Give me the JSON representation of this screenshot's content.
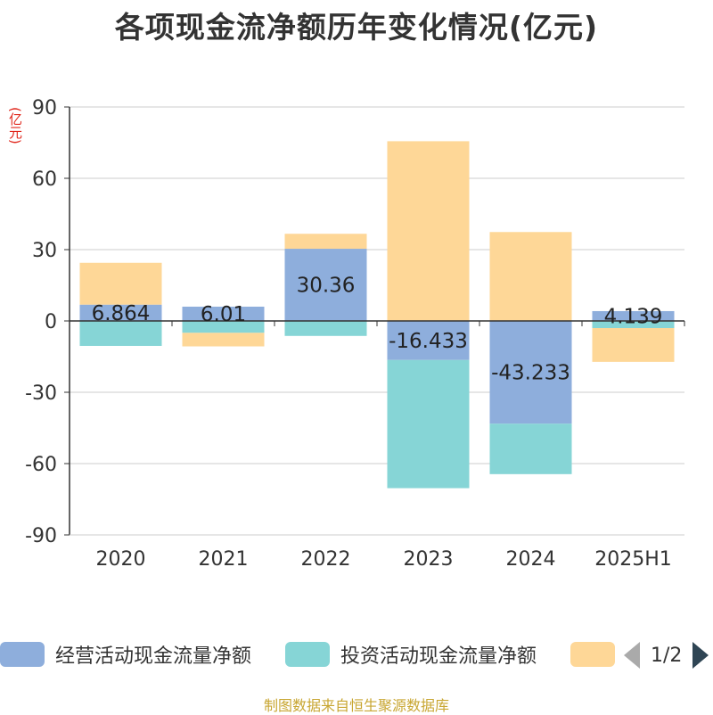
{
  "chart_data": {
    "type": "bar",
    "stacked": true,
    "title": "各项现金流净额历年变化情况(亿元)",
    "ylabel": "(亿元)",
    "ylim": [
      -90,
      90
    ],
    "yticks": [
      90,
      60,
      30,
      0,
      -30,
      -60,
      -90
    ],
    "grid": true,
    "categories": [
      "2020",
      "2021",
      "2022",
      "2023",
      "2024",
      "2025H1"
    ],
    "series": [
      {
        "name": "经营活动现金流量净额",
        "color": "#8eaedc",
        "values": [
          6.864,
          6.01,
          30.36,
          -16.433,
          -43.233,
          4.139
        ],
        "labels": [
          "6.864",
          "6.01",
          "30.36",
          "-16.433",
          "-43.233",
          "4.139"
        ]
      },
      {
        "name": "投资活动现金流量净额",
        "color": "#86d5d6",
        "values": [
          -10.5,
          -5.0,
          -6.3,
          -53.9,
          -21.2,
          -3.0
        ]
      },
      {
        "name": "",
        "color": "#fed797",
        "values": [
          17.6,
          -5.7,
          6.3,
          75.6,
          37.4,
          -14.2
        ]
      }
    ],
    "legend_position": "bottom"
  },
  "legend": {
    "page": "1/2"
  },
  "source": "制图数据来自恒生聚源数据库"
}
